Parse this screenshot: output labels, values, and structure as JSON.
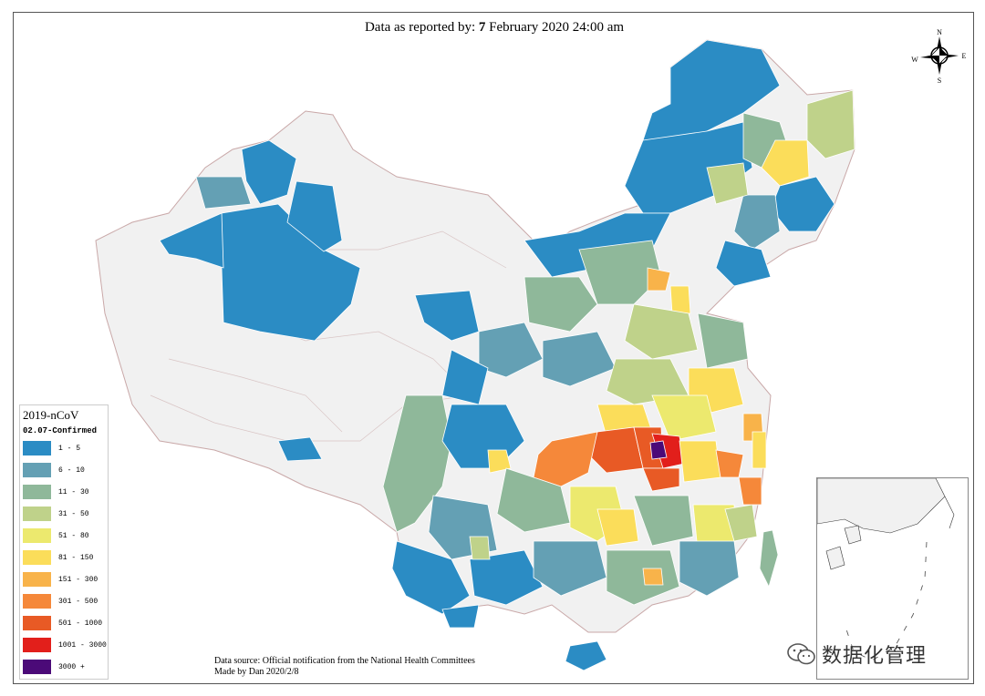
{
  "title": {
    "prefix": "Data as reported by: ",
    "day": "7",
    "suffix": " February 2020 24:00 am"
  },
  "compass": {
    "north": "N",
    "south": "S",
    "east": "E",
    "west": "W"
  },
  "legend": {
    "title": "2019-nCoV",
    "subtitle": "02.07-Confirmed",
    "classes": [
      {
        "label": "1 - 5",
        "color": "#2b8cc4"
      },
      {
        "label": "6 - 10",
        "color": "#64a0b4"
      },
      {
        "label": "11 - 30",
        "color": "#8fb89a"
      },
      {
        "label": "31 - 50",
        "color": "#bfd28a"
      },
      {
        "label": "51 - 80",
        "color": "#ece96e"
      },
      {
        "label": "81 - 150",
        "color": "#fbdd5a"
      },
      {
        "label": "151 - 300",
        "color": "#f8b34a"
      },
      {
        "label": "301 - 500",
        "color": "#f5883a"
      },
      {
        "label": "501 - 1000",
        "color": "#e85a25"
      },
      {
        "label": "1001 - 3000",
        "color": "#e21f1b"
      },
      {
        "label": "3000 +",
        "color": "#4b0a78"
      }
    ]
  },
  "no_data_color": "#f1f1f1",
  "source": {
    "line1": "Data source: Official notification from the National Health Committees",
    "line2": "Made by Dan  2020/2/8"
  },
  "watermark": {
    "text": "数据化管理"
  }
}
